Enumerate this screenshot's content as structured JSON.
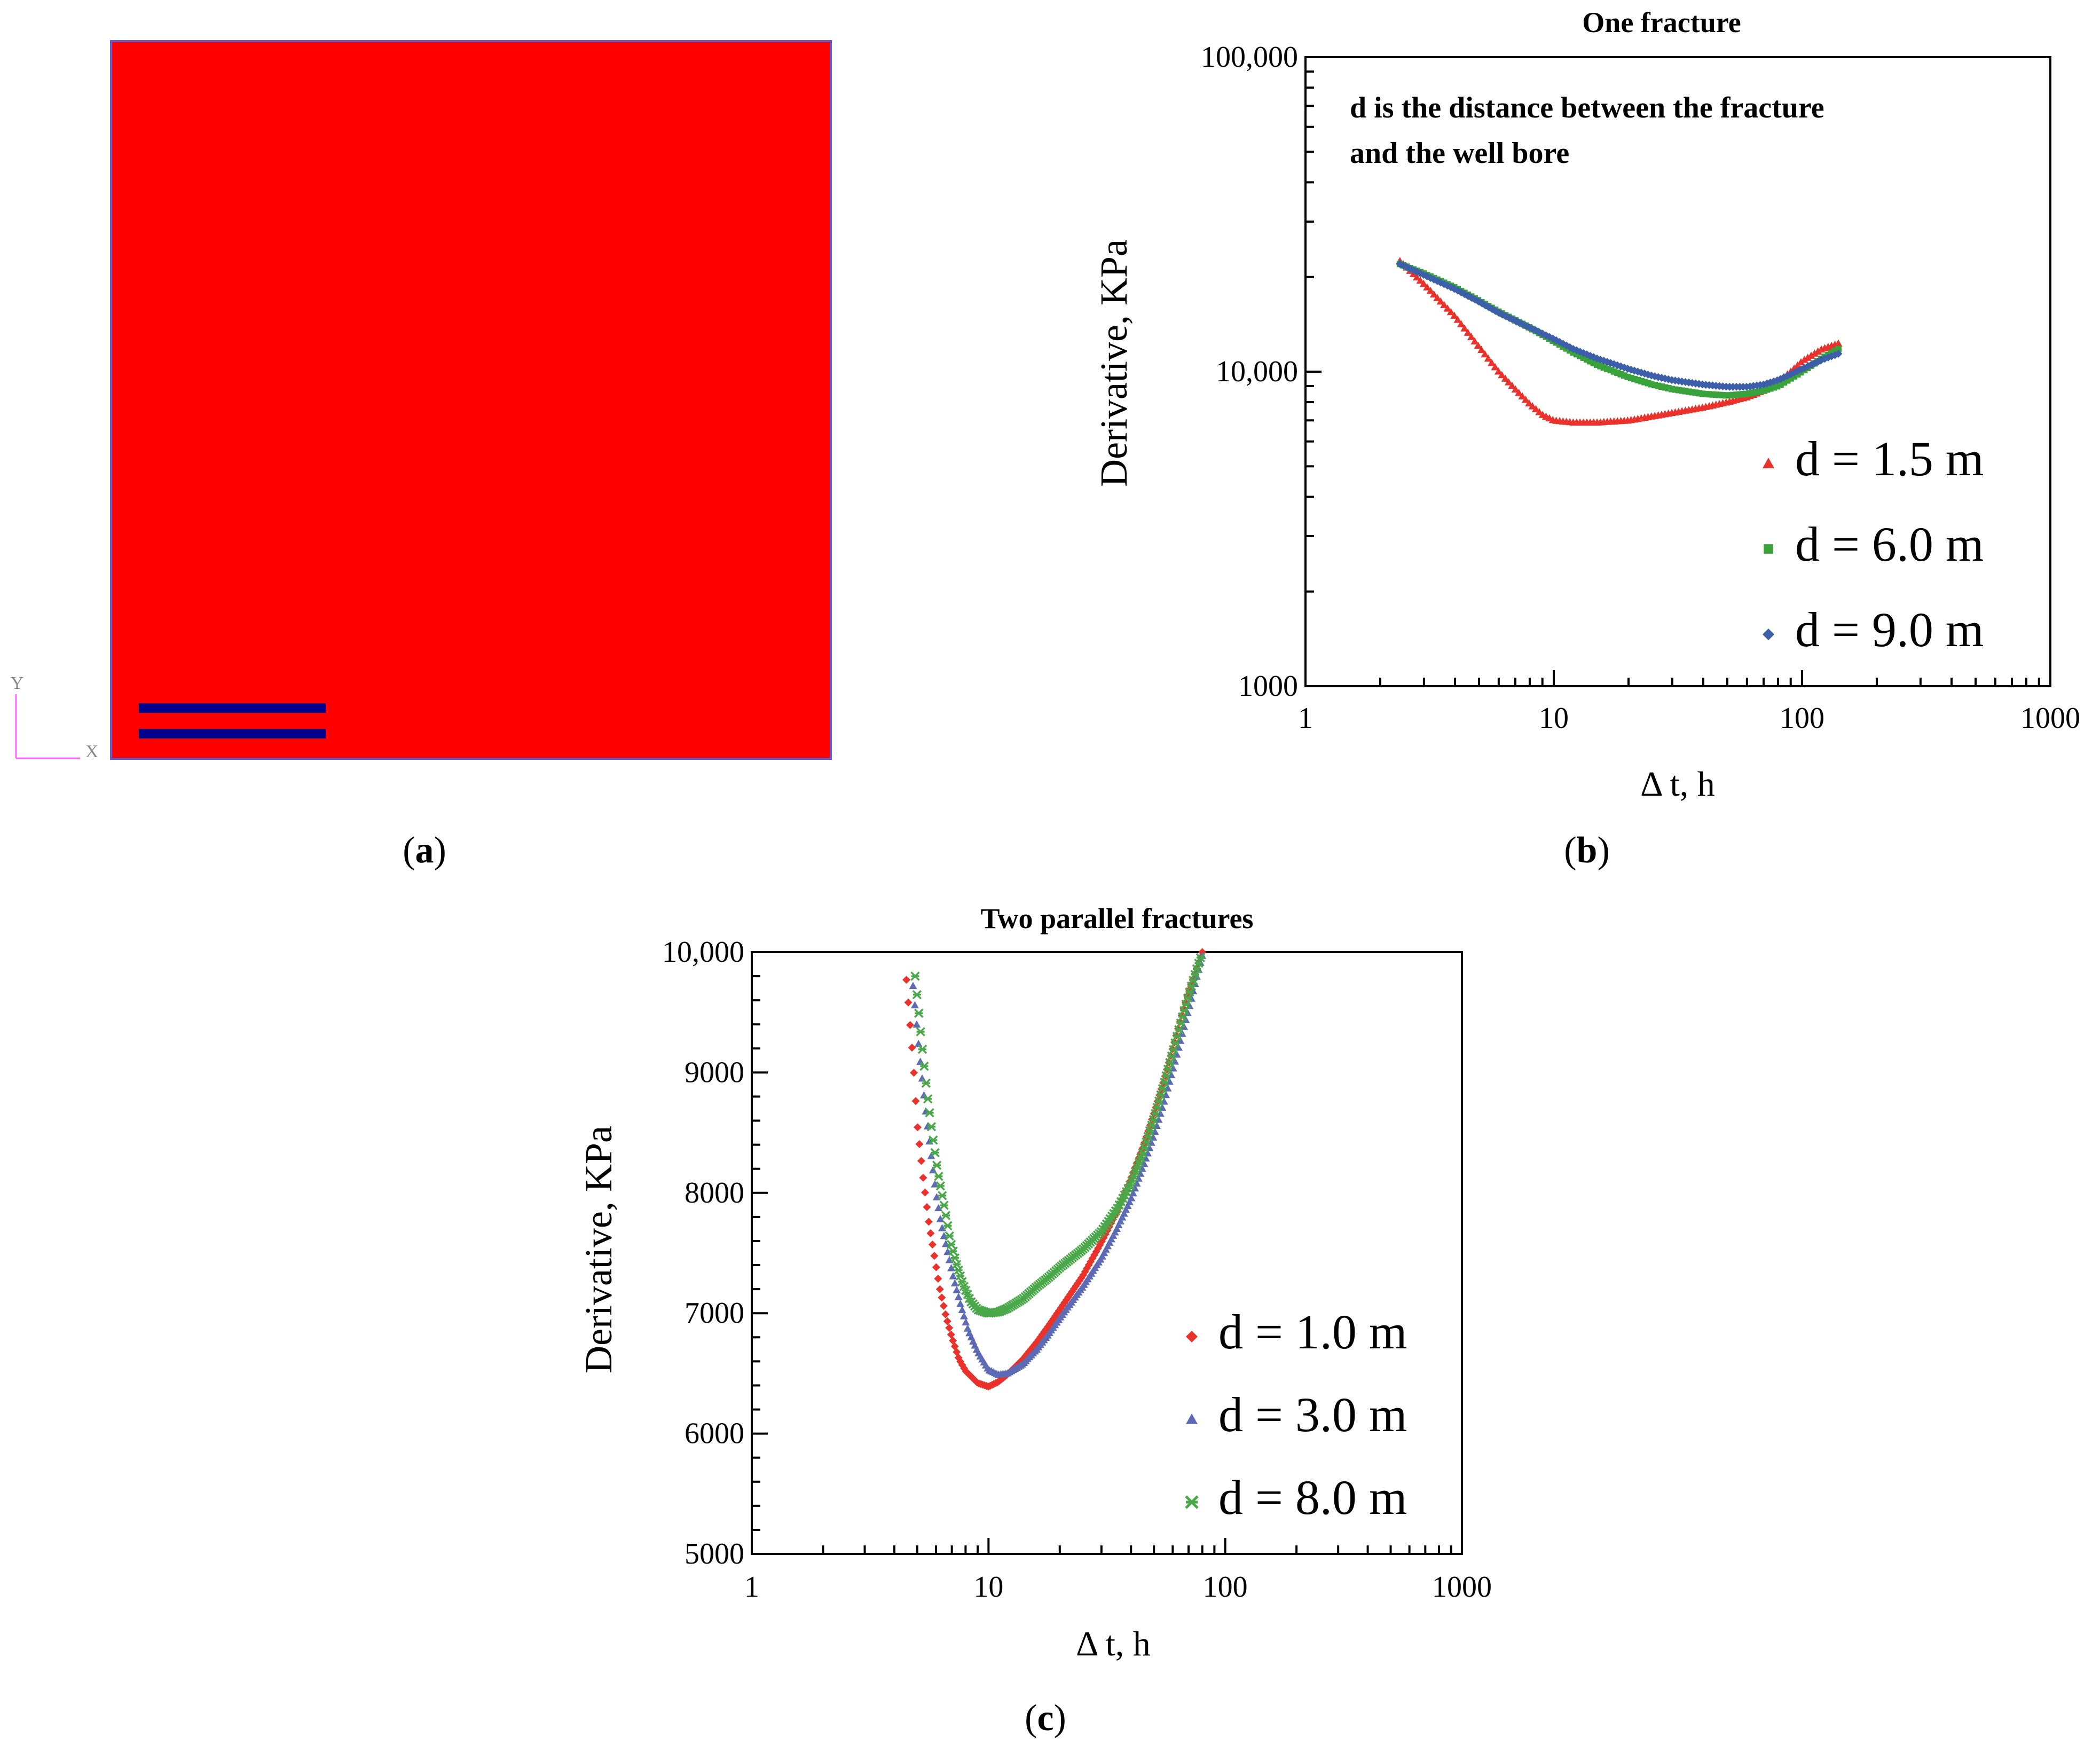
{
  "panel_a": {
    "label_open": "(",
    "label_letter": "a",
    "label_close": ")",
    "axis_y_letter": "Y",
    "axis_x_letter": "X",
    "colors": {
      "domain": "#ff0000",
      "fracture": "#00008b",
      "border": "#6a5acd",
      "triad": "#ff66ff"
    }
  },
  "chart_data": [
    {
      "id": "b",
      "type": "scatter",
      "panel_label_open": "(",
      "panel_label_letter": "b",
      "panel_label_close": ")",
      "title": "One fracture",
      "annotation_line1": "d is the distance between the fracture",
      "annotation_line2": "and the well bore",
      "xlabel": "Δ t, h",
      "ylabel": "Derivative, KPa",
      "xscale": "log",
      "yscale": "log",
      "xlim": [
        1,
        1000
      ],
      "ylim": [
        1000,
        100000
      ],
      "xticks": [
        {
          "v": 1,
          "label": "1"
        },
        {
          "v": 10,
          "label": "10"
        },
        {
          "v": 100,
          "label": "100"
        },
        {
          "v": 1000,
          "label": "1000"
        }
      ],
      "yticks": [
        {
          "v": 1000,
          "label": "1000"
        },
        {
          "v": 10000,
          "label": "10,000"
        },
        {
          "v": 100000,
          "label": "100,000"
        }
      ],
      "legend_position": "bottom-right",
      "series": [
        {
          "name": "d = 1.5 m",
          "color": "#e8322b",
          "marker": "triangle",
          "x": [
            2.4,
            3,
            4,
            5,
            6,
            7,
            8,
            9,
            10,
            12,
            15,
            20,
            30,
            40,
            50,
            60,
            70,
            80,
            90,
            100,
            120,
            140
          ],
          "y": [
            22500,
            19000,
            15000,
            12000,
            10000,
            8800,
            7900,
            7300,
            7000,
            6900,
            6900,
            7000,
            7400,
            7700,
            8000,
            8300,
            8700,
            9300,
            10000,
            10800,
            11800,
            12300
          ]
        },
        {
          "name": "d = 6.0 m",
          "color": "#3aa23a",
          "marker": "square",
          "x": [
            2.4,
            3,
            4,
            5,
            6,
            8,
            10,
            12,
            15,
            20,
            25,
            30,
            40,
            50,
            60,
            70,
            80,
            100,
            120,
            140
          ],
          "y": [
            22000,
            20500,
            18500,
            16800,
            15500,
            13800,
            12500,
            11500,
            10500,
            9600,
            9100,
            8800,
            8500,
            8400,
            8500,
            8700,
            9000,
            10000,
            11000,
            11800
          ]
        },
        {
          "name": "d = 9.0 m",
          "color": "#3d5ea8",
          "marker": "diamond",
          "x": [
            2.4,
            3,
            4,
            5,
            6,
            8,
            10,
            12,
            15,
            20,
            25,
            30,
            40,
            50,
            60,
            70,
            80,
            100,
            120,
            140
          ],
          "y": [
            22000,
            20300,
            18300,
            16700,
            15400,
            13800,
            12700,
            11800,
            11000,
            10200,
            9700,
            9400,
            9100,
            8950,
            8950,
            9100,
            9400,
            10200,
            10900,
            11400
          ]
        }
      ]
    },
    {
      "id": "c",
      "type": "scatter",
      "panel_label_open": "(",
      "panel_label_letter": "c",
      "panel_label_close": ")",
      "title": "Two parallel fractures",
      "xlabel": "Δ t, h",
      "ylabel": "Derivative, KPa",
      "xscale": "log",
      "yscale": "linear",
      "xlim": [
        1,
        1000
      ],
      "ylim": [
        5000,
        10000
      ],
      "xticks": [
        {
          "v": 1,
          "label": "1"
        },
        {
          "v": 10,
          "label": "10"
        },
        {
          "v": 100,
          "label": "100"
        },
        {
          "v": 1000,
          "label": "1000"
        }
      ],
      "yticks": [
        {
          "v": 5000,
          "label": "5000"
        },
        {
          "v": 6000,
          "label": "6000"
        },
        {
          "v": 7000,
          "label": "7000"
        },
        {
          "v": 8000,
          "label": "8000"
        },
        {
          "v": 9000,
          "label": "9000"
        },
        {
          "v": 10000,
          "label": "10,000"
        }
      ],
      "legend_position": "bottom-right",
      "series": [
        {
          "name": "d = 1.0 m",
          "color": "#e8322b",
          "marker": "diamond",
          "x": [
            4.5,
            4.8,
            5.0,
            5.3,
            5.6,
            5.9,
            6.2,
            6.6,
            7.0,
            7.5,
            8.0,
            9.0,
            10,
            11,
            12,
            14,
            16,
            18,
            20,
            25,
            30,
            35,
            40,
            45,
            50,
            55,
            60,
            65,
            70,
            75,
            80
          ],
          "y": [
            9770,
            9100,
            8570,
            8120,
            7750,
            7480,
            7220,
            6980,
            6800,
            6620,
            6520,
            6420,
            6390,
            6430,
            6490,
            6620,
            6760,
            6900,
            7030,
            7310,
            7590,
            7850,
            8120,
            8380,
            8660,
            8930,
            9200,
            9450,
            9670,
            9840,
            10000
          ]
        },
        {
          "name": "d = 3.0 m",
          "color": "#5c6bb4",
          "marker": "triangle",
          "x": [
            4.8,
            5.1,
            5.4,
            5.7,
            6.0,
            6.3,
            6.7,
            7.1,
            7.6,
            8.2,
            9.0,
            10,
            11,
            12,
            14,
            16,
            18,
            20,
            25,
            30,
            35,
            40,
            45,
            50,
            55,
            60,
            65,
            70,
            75,
            80
          ],
          "y": [
            9720,
            9170,
            8720,
            8340,
            8000,
            7750,
            7520,
            7300,
            7080,
            6860,
            6680,
            6530,
            6490,
            6500,
            6580,
            6700,
            6830,
            6960,
            7220,
            7460,
            7710,
            7950,
            8220,
            8480,
            8750,
            9020,
            9280,
            9520,
            9760,
            9970
          ]
        },
        {
          "name": "d = 8.0 m",
          "color": "#4aa84a",
          "marker": "x",
          "x": [
            4.9,
            5.2,
            5.5,
            5.8,
            6.1,
            6.5,
            6.9,
            7.3,
            7.8,
            8.4,
            9.0,
            10,
            11,
            12,
            14,
            16,
            18,
            20,
            25,
            30,
            35,
            40,
            45,
            50,
            55,
            60,
            65,
            70,
            75,
            80
          ],
          "y": [
            9800,
            9280,
            8830,
            8480,
            8180,
            7890,
            7600,
            7420,
            7240,
            7100,
            7030,
            7000,
            7010,
            7040,
            7120,
            7220,
            7300,
            7380,
            7530,
            7680,
            7870,
            8080,
            8340,
            8620,
            8900,
            9170,
            9420,
            9640,
            9830,
            10000
          ]
        }
      ]
    }
  ]
}
